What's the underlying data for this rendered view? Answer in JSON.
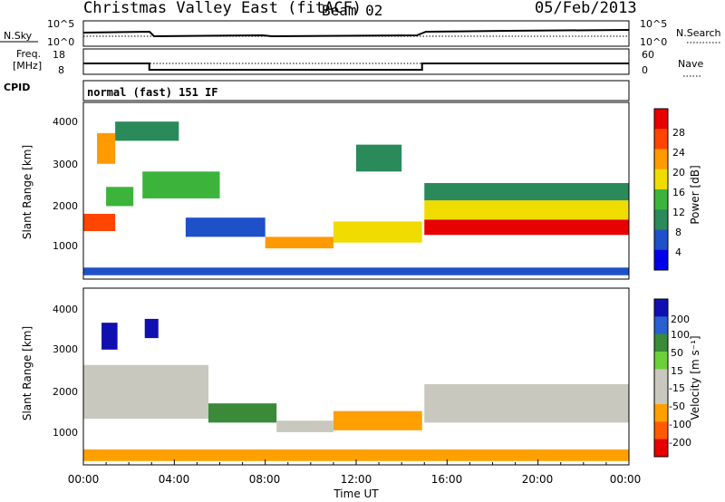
{
  "header": {
    "station": "Christmas Valley East (fitACF)",
    "beam": "Beam 02",
    "date": "05/Feb/2013"
  },
  "noise_panel": {
    "left_label": "N.Sky",
    "left_ticks": [
      "10^5",
      "10^0"
    ],
    "right_ticks": [
      "10^5",
      "10^0"
    ],
    "right_label": "N.Search"
  },
  "freq_panel": {
    "left_label_1": "Freq.",
    "left_label_2": "[MHz]",
    "left_ticks": [
      "18",
      "8"
    ],
    "right_ticks": [
      "60",
      "0"
    ],
    "right_label": "Nave"
  },
  "cpid": {
    "label": "CPID",
    "value": "normal (fast) 151 IF"
  },
  "x_axis": {
    "label": "Time UT",
    "ticks": [
      "00:00",
      "04:00",
      "08:00",
      "12:00",
      "16:00",
      "20:00",
      "00:00"
    ]
  },
  "power_panel": {
    "ylabel": "Slant Range [km]",
    "yticks": [
      "4000",
      "3000",
      "2000",
      "1000"
    ],
    "colorbar_label": "Power [dB]",
    "colorbar_ticks": [
      "28",
      "24",
      "20",
      "16",
      "12",
      "8",
      "4"
    ]
  },
  "velocity_panel": {
    "ylabel": "Slant Range [km]",
    "yticks": [
      "4000",
      "3000",
      "2000",
      "1000"
    ],
    "colorbar_label": "Velocity [m s⁻¹]",
    "colorbar_ticks": [
      "200",
      "100",
      "50",
      "15",
      "-15",
      "-50",
      "-100",
      "-200"
    ]
  },
  "chart_data": {
    "type": "heatmap",
    "x_range_hours": [
      0,
      24
    ],
    "y_range_km": [
      0,
      4600
    ],
    "freq_mhz": [
      {
        "from": 0,
        "to": 2.9,
        "value": 13
      },
      {
        "from": 2.9,
        "to": 14.9,
        "value": 10.5
      },
      {
        "from": 14.9,
        "to": 24,
        "value": 13
      }
    ],
    "power_bands": [
      {
        "t0": 0,
        "t1": 1.4,
        "r0": 1250,
        "r1": 1700,
        "level": 26
      },
      {
        "t0": 0.6,
        "t1": 1.4,
        "r0": 3000,
        "r1": 3800,
        "level": 22
      },
      {
        "t0": 1.0,
        "t1": 2.2,
        "r0": 1900,
        "r1": 2400,
        "level": 14
      },
      {
        "t0": 2.6,
        "t1": 6.0,
        "r0": 2100,
        "r1": 2800,
        "level": 12
      },
      {
        "t0": 1.4,
        "t1": 4.2,
        "r0": 3600,
        "r1": 4100,
        "level": 8
      },
      {
        "t0": 4.5,
        "t1": 8.0,
        "r0": 1100,
        "r1": 1600,
        "level": 7
      },
      {
        "t0": 8.0,
        "t1": 11.0,
        "r0": 800,
        "r1": 1100,
        "level": 22
      },
      {
        "t0": 11.0,
        "t1": 14.9,
        "r0": 950,
        "r1": 1500,
        "level": 16
      },
      {
        "t0": 12.0,
        "t1": 14.0,
        "r0": 2800,
        "r1": 3500,
        "level": 8
      },
      {
        "t0": 15.0,
        "t1": 24.0,
        "r0": 1150,
        "r1": 1550,
        "level": 28
      },
      {
        "t0": 15.0,
        "t1": 24.0,
        "r0": 1550,
        "r1": 2050,
        "level": 18
      },
      {
        "t0": 15.0,
        "t1": 24.0,
        "r0": 2050,
        "r1": 2500,
        "level": 8
      },
      {
        "t0": 0.0,
        "t1": 24.0,
        "r0": 100,
        "r1": 300,
        "level": 6
      }
    ],
    "velocity_bands": [
      {
        "t0": 0,
        "t1": 5.5,
        "r0": 1200,
        "r1": 2600,
        "value": 0
      },
      {
        "t0": 0.8,
        "t1": 1.5,
        "r0": 3000,
        "r1": 3700,
        "value": 200
      },
      {
        "t0": 2.7,
        "t1": 3.3,
        "r0": 3300,
        "r1": 3800,
        "value": 200
      },
      {
        "t0": 5.5,
        "t1": 8.5,
        "r0": 1100,
        "r1": 1600,
        "value": 30
      },
      {
        "t0": 8.5,
        "t1": 11.0,
        "r0": 850,
        "r1": 1150,
        "value": 0
      },
      {
        "t0": 11.0,
        "t1": 14.9,
        "r0": 900,
        "r1": 1400,
        "value": -40
      },
      {
        "t0": 15.0,
        "t1": 24.0,
        "r0": 1100,
        "r1": 2100,
        "value": 0
      },
      {
        "t0": 0.0,
        "t1": 24.0,
        "r0": 100,
        "r1": 400,
        "value": -40
      }
    ]
  },
  "colors": {
    "power": [
      "#0000e6",
      "#1e50c8",
      "#2a8a5a",
      "#3cb43c",
      "#f0dc00",
      "#ff9a00",
      "#ff4500",
      "#e60000"
    ],
    "velocity": [
      "#1010b0",
      "#2a60d0",
      "#3a8a3a",
      "#6bd03a",
      "#c8c8be",
      "#c8c8be",
      "#ffa000",
      "#ff5a00",
      "#e60000"
    ]
  }
}
